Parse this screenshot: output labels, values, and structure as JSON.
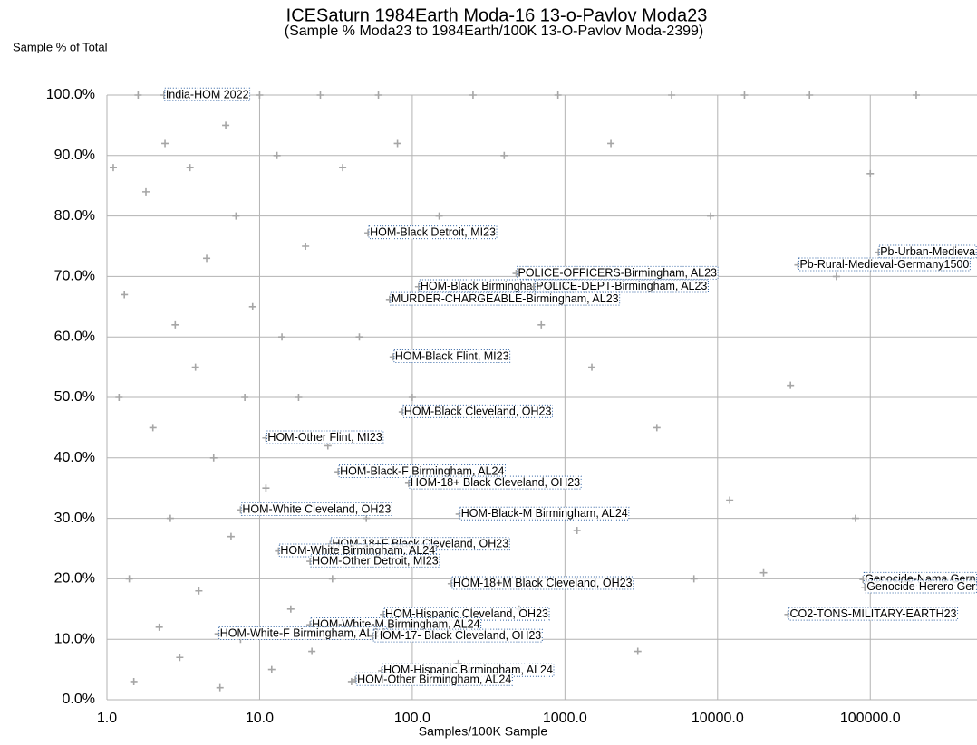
{
  "chart_data": {
    "type": "scatter",
    "title": "ICESaturn 1984Earth Moda-16 13-o-Pavlov Moda23",
    "subtitle": "(Sample % Moda23 to 1984Earth/100K 13-O-Pavlov Moda-2399)",
    "y_label": "Sample % of Total",
    "x_label": "Samples/100K Sample",
    "x_log": true,
    "grid": true,
    "color": "#a6a6a6",
    "xlim": [
      1,
      500000
    ],
    "ylim": [
      0,
      100
    ],
    "xticks": [
      {
        "value": 1,
        "label": "1.0"
      },
      {
        "value": 10,
        "label": "10.0"
      },
      {
        "value": 100,
        "label": "100.0"
      },
      {
        "value": 1000,
        "label": "1000.0"
      },
      {
        "value": 10000,
        "label": "10000.0"
      },
      {
        "value": 100000,
        "label": "100000.0"
      }
    ],
    "yticks": [
      {
        "value": 0,
        "label": "0.0%"
      },
      {
        "value": 10,
        "label": "10.0%"
      },
      {
        "value": 20,
        "label": "20.0%"
      },
      {
        "value": 30,
        "label": "30.0%"
      },
      {
        "value": 40,
        "label": "40.0%"
      },
      {
        "value": 50,
        "label": "50.0%"
      },
      {
        "value": 60,
        "label": "60.0%"
      },
      {
        "value": 70,
        "label": "70.0%"
      },
      {
        "value": 80,
        "label": "80.0%"
      },
      {
        "value": 90,
        "label": "90.0%"
      },
      {
        "value": 100,
        "label": "100.0%"
      }
    ],
    "x": [
      1.1,
      1.2,
      1.3,
      1.4,
      1.5,
      1.6,
      1.8,
      2,
      2.2,
      2.4,
      2.6,
      2.8,
      3,
      3.2,
      3.5,
      3.8,
      4,
      4.5,
      5,
      5.5,
      6,
      6.5,
      7,
      7.5,
      8,
      9,
      10,
      11,
      12,
      13,
      14,
      16,
      18,
      20,
      22,
      25,
      28,
      30,
      35,
      40,
      45,
      50,
      60,
      70,
      80,
      100,
      120,
      150,
      200,
      250,
      300,
      400,
      500,
      700,
      900,
      1200,
      1500,
      2000,
      3000,
      4000,
      5000,
      7000,
      9000,
      12000,
      15000,
      20000,
      30000,
      40000,
      60000,
      80000,
      100000,
      200000
    ],
    "values": [
      88,
      50,
      67,
      20,
      3,
      100,
      84,
      45,
      12,
      92,
      30,
      62,
      7,
      100,
      88,
      55,
      18,
      73,
      40,
      2,
      95,
      27,
      80,
      10,
      50,
      65,
      100,
      35,
      5,
      90,
      60,
      15,
      50,
      75,
      8,
      100,
      42,
      20,
      88,
      3,
      60,
      30,
      100,
      12,
      92,
      50,
      25,
      80,
      6,
      100,
      38,
      90,
      15,
      62,
      100,
      28,
      55,
      92,
      8,
      45,
      100,
      20,
      80,
      33,
      100,
      21,
      52,
      100,
      70,
      30,
      87,
      100
    ],
    "annotations": [
      {
        "text": "India-HOM 2022",
        "x": 2.36,
        "y": 100
      },
      {
        "text": "HOM-Black Detroit, MI23",
        "x": 51.3,
        "y": 77.2
      },
      {
        "text": "Pb-Urban-Medieva",
        "x": 113000,
        "y": 74.0
      },
      {
        "text": "Pb-Rural-Medieval-Germany1500",
        "x": 33600,
        "y": 71.9
      },
      {
        "text": "POLICE-OFFICERS-Birmingham, AL23",
        "x": 479,
        "y": 70.5
      },
      {
        "text": "HOM-Black Birmingham, AL23",
        "x": 110,
        "y": 68.3
      },
      {
        "text": "POLICE-DEPT-Birmingham, AL23",
        "x": 629,
        "y": 68.3
      },
      {
        "text": "MURDER-CHARGEABLE-Birmingham, AL23",
        "x": 71,
        "y": 66.2
      },
      {
        "text": "HOM-Black Flint, MI23",
        "x": 75,
        "y": 56.7
      },
      {
        "text": "HOM-Black Cleveland, OH23",
        "x": 86,
        "y": 47.6
      },
      {
        "text": "HOM-Other Flint, MI23",
        "x": 11.0,
        "y": 43.3
      },
      {
        "text": "HOM-Black-F Birmingham, AL24",
        "x": 32.7,
        "y": 37.7
      },
      {
        "text": "HOM-18+ Black Cleveland, OH23",
        "x": 94.7,
        "y": 35.8
      },
      {
        "text": "HOM-White Cleveland, OH23",
        "x": 7.5,
        "y": 31.4
      },
      {
        "text": "HOM-Black-M Birmingham, AL24",
        "x": 203,
        "y": 30.7
      },
      {
        "text": "HOM-18+F Black Cleveland, OH23",
        "x": 29.0,
        "y": 25.7
      },
      {
        "text": "HOM-White Birmingham, AL24",
        "x": 13.3,
        "y": 24.6
      },
      {
        "text": "HOM-Other Detroit, MI23",
        "x": 21.4,
        "y": 22.9
      },
      {
        "text": "HOM-18+M Black Cleveland, OH23",
        "x": 180,
        "y": 19.2
      },
      {
        "text": "Genocide-Nama Gern",
        "x": 89700,
        "y": 19.9
      },
      {
        "text": "Genocide-Herero Ger",
        "x": 92100,
        "y": 18.6
      },
      {
        "text": "HOM-Hispanic Cleveland, OH23",
        "x": 64.7,
        "y": 14.1
      },
      {
        "text": "CO2-TONS-MILITARY-EARTH23",
        "x": 28900,
        "y": 14.1
      },
      {
        "text": "HOM-White-M Birmingham, AL24",
        "x": 21.4,
        "y": 12.4
      },
      {
        "text": "HOM-White-F Birmingham, AL24",
        "x": 5.35,
        "y": 10.9
      },
      {
        "text": "HOM-17- Black Cleveland, OH23",
        "x": 55,
        "y": 10.5
      },
      {
        "text": "HOM-Hispanic Birmingham, AL24",
        "x": 63,
        "y": 4.8
      },
      {
        "text": "HOM-Other Birmingham, AL24",
        "x": 42.4,
        "y": 3.3
      }
    ]
  }
}
